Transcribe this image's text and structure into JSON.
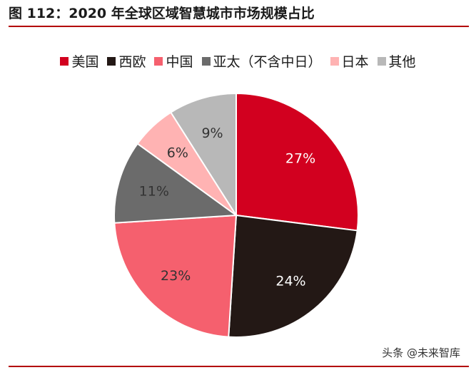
{
  "chart_data": {
    "type": "pie",
    "title": "图 112：2020 年全球区域智慧城市市场规模占比",
    "categories": [
      "美国",
      "西欧",
      "中国",
      "亚太（不含中日）",
      "日本",
      "其他"
    ],
    "values": [
      27,
      24,
      23,
      11,
      6,
      9
    ],
    "value_labels": [
      "27%",
      "24%",
      "23%",
      "11%",
      "6%",
      "9%"
    ],
    "colors": [
      "#d2001f",
      "#231815",
      "#f5606e",
      "#6b6b6b",
      "#ffb3b3",
      "#b8b8b8"
    ],
    "label_colors": [
      "#ffffff",
      "#ffffff",
      "#333333",
      "#333333",
      "#333333",
      "#333333"
    ],
    "legend_position": "top"
  },
  "footer": {
    "watermark": "头条 @未来智库"
  }
}
